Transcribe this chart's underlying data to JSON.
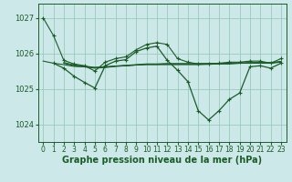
{
  "background_color": "#cce8e8",
  "grid_color": "#99ccbb",
  "line_color": "#1a5c28",
  "xlabel": "Graphe pression niveau de la mer (hPa)",
  "xlabel_fontsize": 7,
  "ylim": [
    1023.5,
    1027.4
  ],
  "xlim": [
    -0.5,
    23.5
  ],
  "yticks": [
    1024,
    1025,
    1026,
    1027
  ],
  "xticks": [
    0,
    1,
    2,
    3,
    4,
    5,
    6,
    7,
    8,
    9,
    10,
    11,
    12,
    13,
    14,
    15,
    16,
    17,
    18,
    19,
    20,
    21,
    22,
    23
  ],
  "series_upper_x": [
    0,
    1,
    2,
    3,
    4,
    5,
    6,
    7,
    8,
    9,
    10,
    11,
    12,
    13,
    14,
    15,
    16,
    17,
    18,
    19,
    20,
    21,
    22,
    23
  ],
  "series_upper_y": [
    1027.0,
    1026.5,
    1025.8,
    1025.7,
    1025.65,
    1025.5,
    1025.75,
    1025.85,
    1025.9,
    1026.1,
    1026.25,
    1026.3,
    1026.25,
    1025.85,
    1025.75,
    1025.7,
    1025.7,
    1025.72,
    1025.75,
    1025.75,
    1025.78,
    1025.78,
    1025.72,
    1025.85
  ],
  "series_flat1_x": [
    0,
    1,
    2,
    3,
    4,
    5,
    6,
    7,
    8,
    9,
    10,
    11,
    12,
    13,
    14,
    15,
    16,
    17,
    18,
    19,
    20,
    21,
    22,
    23
  ],
  "series_flat1_y": [
    1025.78,
    1025.72,
    1025.68,
    1025.63,
    1025.62,
    1025.6,
    1025.62,
    1025.64,
    1025.65,
    1025.67,
    1025.68,
    1025.68,
    1025.68,
    1025.68,
    1025.68,
    1025.68,
    1025.69,
    1025.7,
    1025.7,
    1025.72,
    1025.72,
    1025.72,
    1025.72,
    1025.75
  ],
  "series_flat2_x": [
    2,
    3,
    4,
    5,
    6,
    7,
    8,
    9,
    10,
    11,
    12,
    13,
    14,
    15,
    16,
    17,
    18,
    19,
    20,
    21,
    22,
    23
  ],
  "series_flat2_y": [
    1025.72,
    1025.65,
    1025.62,
    1025.58,
    1025.6,
    1025.63,
    1025.65,
    1025.67,
    1025.69,
    1025.69,
    1025.7,
    1025.7,
    1025.7,
    1025.7,
    1025.71,
    1025.71,
    1025.71,
    1025.72,
    1025.73,
    1025.73,
    1025.73,
    1025.76
  ],
  "series_flat3_x": [
    2,
    3,
    4,
    5,
    6,
    7,
    8,
    9,
    10,
    11,
    12,
    13,
    14,
    15,
    16,
    17,
    18,
    19,
    20,
    21,
    22,
    23
  ],
  "series_flat3_y": [
    1025.74,
    1025.67,
    1025.64,
    1025.6,
    1025.61,
    1025.64,
    1025.66,
    1025.68,
    1025.7,
    1025.7,
    1025.71,
    1025.71,
    1025.71,
    1025.71,
    1025.71,
    1025.71,
    1025.72,
    1025.73,
    1025.74,
    1025.74,
    1025.74,
    1025.77
  ],
  "series_main_x": [
    1,
    2,
    3,
    4,
    5,
    6,
    7,
    8,
    9,
    10,
    11,
    12,
    13,
    14,
    15,
    16,
    17,
    18,
    19,
    20,
    21,
    22,
    23
  ],
  "series_main_y": [
    1025.72,
    1025.58,
    1025.35,
    1025.18,
    1025.02,
    1025.65,
    1025.78,
    1025.82,
    1026.05,
    1026.15,
    1026.2,
    1025.8,
    1025.52,
    1025.2,
    1024.38,
    1024.12,
    1024.38,
    1024.7,
    1024.88,
    1025.62,
    1025.65,
    1025.58,
    1025.72
  ]
}
